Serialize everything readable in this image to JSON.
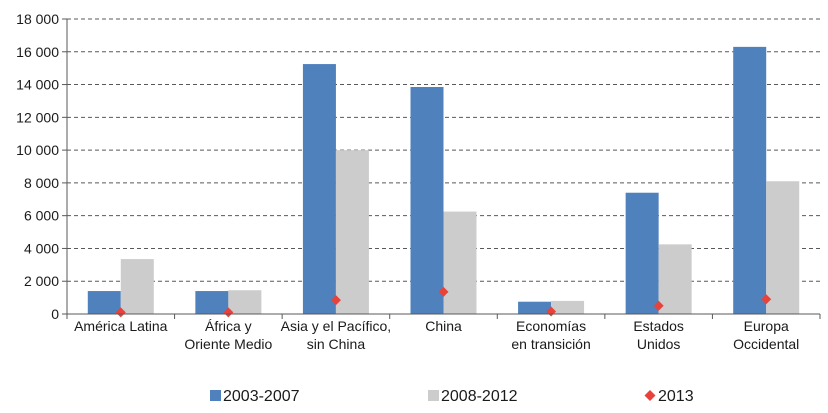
{
  "chart_data": {
    "type": "bar",
    "title": "",
    "xlabel": "",
    "ylabel": "",
    "ylim": [
      0,
      18000
    ],
    "yticks": [
      0,
      2000,
      4000,
      6000,
      8000,
      10000,
      12000,
      14000,
      16000,
      18000
    ],
    "ytick_labels": [
      "0",
      "2 000",
      "4 000",
      "6 000",
      "8 000",
      "10 000",
      "12 000",
      "14 000",
      "16 000",
      "18 000"
    ],
    "grid": "horizontal dashed",
    "legend_position": "bottom",
    "categories": [
      [
        "América Latina"
      ],
      [
        "África y",
        "Oriente Medio"
      ],
      [
        "Asia y el Pacífico,",
        "sin China"
      ],
      [
        "China"
      ],
      [
        "Economías",
        "en transición"
      ],
      [
        "Estados",
        "Unidos"
      ],
      [
        "Europa",
        "Occidental"
      ]
    ],
    "series": [
      {
        "name": "2003-2007",
        "kind": "bar",
        "color": "#4f81bd",
        "values": [
          1400,
          1400,
          15250,
          13850,
          750,
          7400,
          16300
        ]
      },
      {
        "name": "2008-2012",
        "kind": "bar",
        "color": "#cccccc",
        "values": [
          3350,
          1450,
          10000,
          6250,
          800,
          4250,
          8100
        ]
      },
      {
        "name": "2013",
        "kind": "marker",
        "marker": "diamond",
        "color": "#e8423a",
        "values": [
          100,
          100,
          850,
          1350,
          150,
          500,
          900
        ]
      }
    ]
  }
}
